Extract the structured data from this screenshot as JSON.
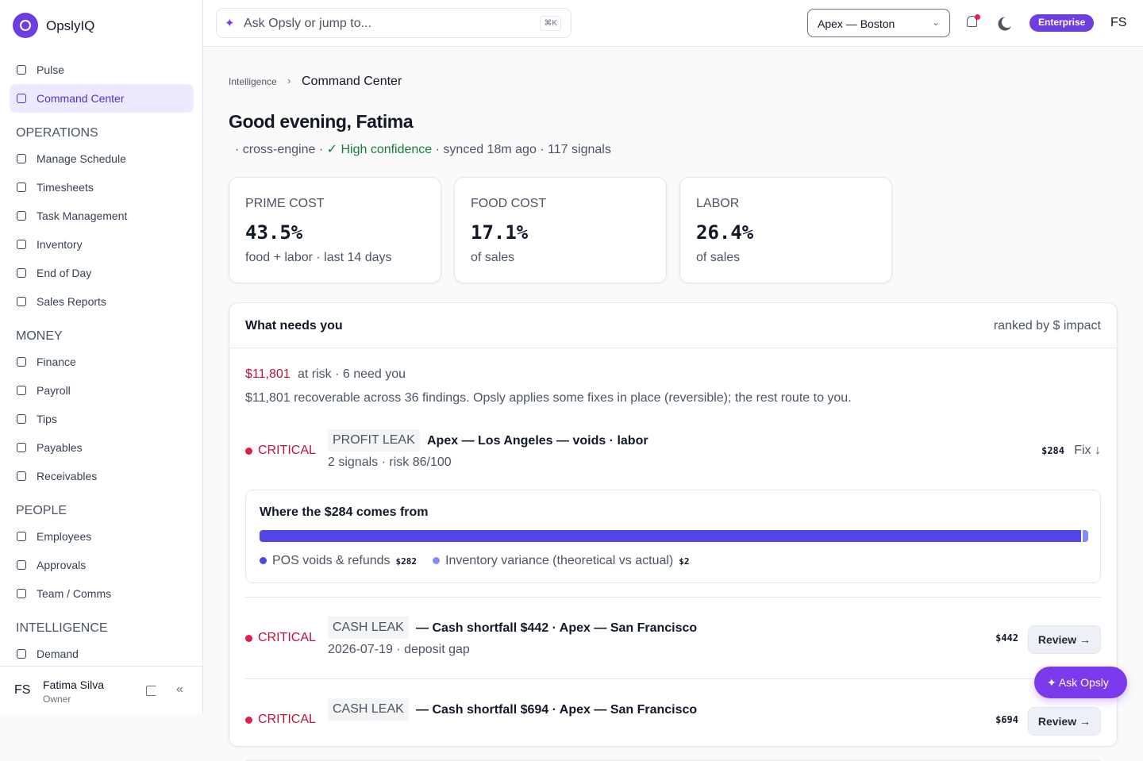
{
  "sidebar": {
    "brand": "OpslyIQ",
    "top_items": [
      "Pulse",
      "Command Center"
    ],
    "active": "Command Center",
    "sections": [
      {
        "title": "OPERATIONS",
        "items": [
          "Manage Schedule",
          "Timesheets",
          "Task Management",
          "Inventory",
          "End of Day",
          "Sales Reports"
        ]
      },
      {
        "title": "MONEY",
        "items": [
          "Finance",
          "Payroll",
          "Tips",
          "Payables",
          "Receivables"
        ]
      },
      {
        "title": "PEOPLE",
        "items": [
          "Employees",
          "Approvals",
          "Team / Comms"
        ]
      },
      {
        "title": "INTELLIGENCE",
        "items": [
          "Demand"
        ]
      }
    ],
    "user": {
      "initials": "FS",
      "name": "Fatima Silva",
      "role": "Owner"
    }
  },
  "topbar": {
    "search": "Ask Opsly or jump to...",
    "shortcut": "⌘K",
    "location": "Apex — Boston",
    "plan": "Enterprise",
    "initials": "FS"
  },
  "breadcrumb": [
    "Intelligence",
    "Command Center"
  ],
  "greeting": "Good evening, Fatima",
  "status": {
    "before": "· cross-engine ·",
    "confidence": "✓ High confidence",
    "after": "· synced 18m ago · 117 signals"
  },
  "kpis": [
    {
      "label": "PRIME COST",
      "value": "43.5%",
      "note": "food + labor · last 14 days"
    },
    {
      "label": "FOOD COST",
      "value": "17.1%",
      "note": "of sales"
    },
    {
      "label": "LABOR",
      "value": "26.4%",
      "note": "of sales"
    }
  ],
  "panel": {
    "title": "What needs you",
    "sort": "ranked by $ impact",
    "risk_amount": "$11,801",
    "risk_text": "at risk · 6 need you",
    "summary": "$11,801 recoverable across 36 findings. Opsly applies some fixes in place (reversible); the rest route to you.",
    "findings": [
      {
        "severity": "CRITICAL",
        "tag": "PROFIT LEAK",
        "title": "Apex — Los Angeles — voids · labor",
        "meta": "2 signals · risk 86/100",
        "amount": "$284",
        "action": "Fix ↓",
        "breakdown": {
          "title": "Where the $284 comes from",
          "parts": [
            {
              "name": "POS voids & refunds",
              "value": 282,
              "value_label": "$282",
              "color": "#4f46e5"
            },
            {
              "name": "Inventory variance (theoretical vs actual)",
              "value": 2,
              "value_label": "$2",
              "color": "#818cf8"
            }
          ]
        }
      },
      {
        "severity": "CRITICAL",
        "tag": "CASH LEAK",
        "title": "— Cash shortfall $442 · Apex — San Francisco",
        "meta": "2026-07-19 · deposit gap",
        "amount": "$442",
        "action": "Review →"
      },
      {
        "severity": "CRITICAL",
        "tag": "CASH LEAK",
        "title": "— Cash shortfall $694 · Apex — San Francisco",
        "amount": "$694",
        "action": "Review →"
      }
    ]
  },
  "fab": "✦ Ask Opsly"
}
